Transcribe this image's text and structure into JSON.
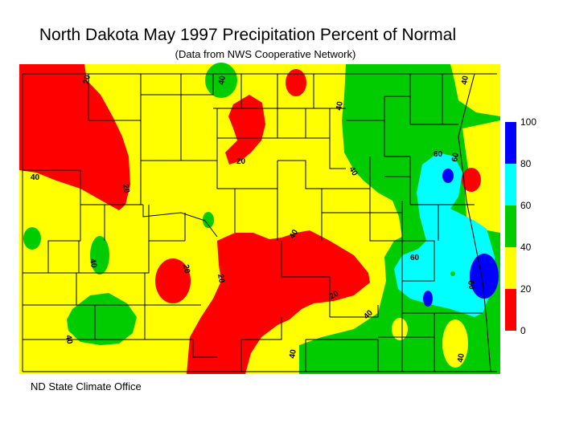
{
  "title": "North Dakota May 1997 Precipitation Percent of Normal",
  "subtitle": "(Data from NWS Cooperative Network)",
  "footer": "ND State Climate Office",
  "colors": {
    "band_0_20": "#ff0000",
    "band_20_40": "#ffff00",
    "band_40_60": "#00cc00",
    "band_60_80": "#00ffff",
    "band_80_100": "#0000ff"
  },
  "legend": {
    "ticks": [
      "100",
      "80",
      "60",
      "40",
      "20",
      "0"
    ],
    "bands": [
      {
        "from": 80,
        "to": 100,
        "color": "#0000ff"
      },
      {
        "from": 60,
        "to": 80,
        "color": "#00ffff"
      },
      {
        "from": 40,
        "to": 60,
        "color": "#00cc00"
      },
      {
        "from": 20,
        "to": 40,
        "color": "#ffff00"
      },
      {
        "from": 0,
        "to": 20,
        "color": "#ff0000"
      }
    ]
  },
  "contour_labels": [
    "20",
    "40",
    "40",
    "20",
    "40",
    "40",
    "60",
    "40",
    "20",
    "60",
    "40",
    "20",
    "20",
    "40",
    "20",
    "40",
    "60",
    "60",
    "40",
    "40",
    "40"
  ]
}
